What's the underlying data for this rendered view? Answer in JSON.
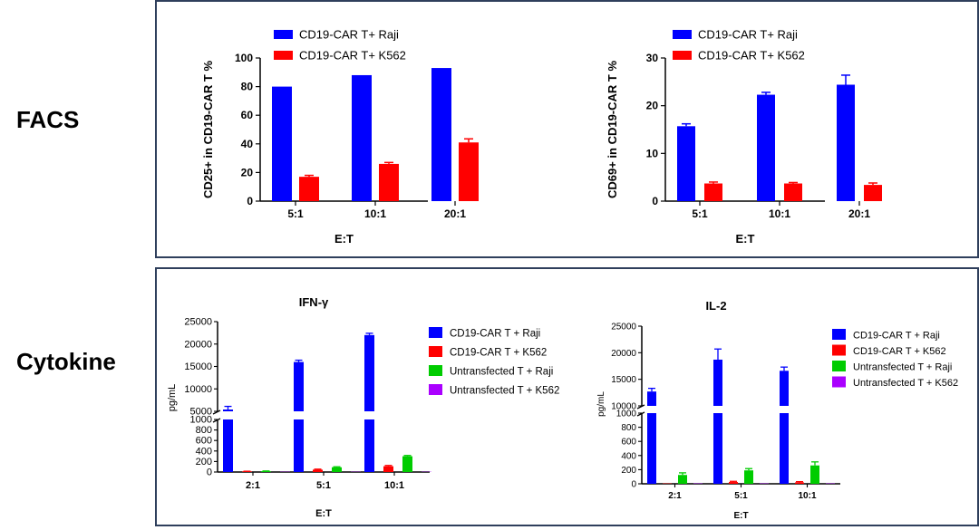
{
  "labels": {
    "facs": "FACS",
    "cytokine": "Cytokine"
  },
  "colors": {
    "blue": "#0000ff",
    "red": "#ff0000",
    "green": "#00cc00",
    "purple": "#aa00ff",
    "frame": "#2f3f5c"
  },
  "chart_data": [
    {
      "id": "cd25",
      "type": "bar",
      "title": "",
      "xlabel": "E:T",
      "ylabel": "CD25+ in CD19-CAR T %",
      "categories": [
        "5:1",
        "10:1",
        "20:1"
      ],
      "ylim": [
        0,
        100
      ],
      "yticks": [
        0,
        20,
        40,
        60,
        80,
        100
      ],
      "legend_position": "top-left",
      "series": [
        {
          "name": "CD19-CAR T+ Raji",
          "color": "#0000ff",
          "values": [
            80,
            88,
            93
          ],
          "errors": [
            0,
            0,
            0
          ]
        },
        {
          "name": "CD19-CAR T+ K562",
          "color": "#ff0000",
          "values": [
            17,
            26,
            41
          ],
          "errors": [
            1,
            1,
            2.5
          ]
        }
      ]
    },
    {
      "id": "cd69",
      "type": "bar",
      "title": "",
      "xlabel": "E:T",
      "ylabel": "CD69+ in CD19-CAR T %",
      "categories": [
        "5:1",
        "10:1",
        "20:1"
      ],
      "ylim": [
        0,
        30
      ],
      "yticks": [
        0,
        10,
        20,
        30
      ],
      "legend_position": "top-left",
      "series": [
        {
          "name": "CD19-CAR T+ Raji",
          "color": "#0000ff",
          "values": [
            15.7,
            22.3,
            24.4
          ],
          "errors": [
            0.5,
            0.5,
            2
          ]
        },
        {
          "name": "CD19-CAR T+ K562",
          "color": "#ff0000",
          "values": [
            3.7,
            3.7,
            3.4
          ],
          "errors": [
            0.3,
            0.2,
            0.4
          ]
        }
      ]
    },
    {
      "id": "ifng",
      "type": "bar",
      "title": "IFN-γ",
      "xlabel": "E:T",
      "ylabel": "pg/mL",
      "categories": [
        "2:1",
        "5:1",
        "10:1"
      ],
      "broken_axis": {
        "lower": [
          0,
          1000
        ],
        "upper": [
          0,
          25000
        ]
      },
      "yticks_lower": [
        0,
        200,
        400,
        600,
        800,
        1000
      ],
      "yticks_upper": [
        5000,
        10000,
        15000,
        20000,
        25000
      ],
      "legend_position": "right",
      "series": [
        {
          "name": "CD19-CAR T + Raji",
          "color": "#0000ff",
          "values": [
            5400,
            16000,
            22000
          ],
          "errors": [
            700,
            400,
            400
          ]
        },
        {
          "name": "CD19-CAR T + K562",
          "color": "#ff0000",
          "values": [
            10,
            45,
            110
          ],
          "errors": [
            5,
            10,
            15
          ]
        },
        {
          "name": "Untransfected T + Raji",
          "color": "#00cc00",
          "values": [
            15,
            90,
            300
          ],
          "errors": [
            5,
            10,
            15
          ]
        },
        {
          "name": "Untransfected T + K562",
          "color": "#aa00ff",
          "values": [
            5,
            5,
            5
          ],
          "errors": [
            0,
            0,
            0
          ]
        }
      ]
    },
    {
      "id": "il2",
      "type": "bar",
      "title": "IL-2",
      "xlabel": "E:T",
      "ylabel": "pg/mL",
      "categories": [
        "2:1",
        "5:1",
        "10:1"
      ],
      "broken_axis": {
        "lower": [
          0,
          1000
        ],
        "upper": [
          10000,
          25000
        ]
      },
      "yticks_lower": [
        0,
        200,
        400,
        600,
        800,
        1000
      ],
      "yticks_upper": [
        10000,
        15000,
        20000,
        25000
      ],
      "legend_position": "right",
      "series": [
        {
          "name": "CD19-CAR T + Raji",
          "color": "#0000ff",
          "values": [
            12700,
            18700,
            16600
          ],
          "errors": [
            600,
            2000,
            700
          ]
        },
        {
          "name": "CD19-CAR T + K562",
          "color": "#ff0000",
          "values": [
            5,
            25,
            20
          ],
          "errors": [
            0,
            10,
            10
          ]
        },
        {
          "name": "Untransfected T + Raji",
          "color": "#00cc00",
          "values": [
            125,
            190,
            260
          ],
          "errors": [
            30,
            25,
            50
          ]
        },
        {
          "name": "Untransfected T + K562",
          "color": "#aa00ff",
          "values": [
            5,
            5,
            5
          ],
          "errors": [
            0,
            0,
            0
          ]
        }
      ]
    }
  ]
}
